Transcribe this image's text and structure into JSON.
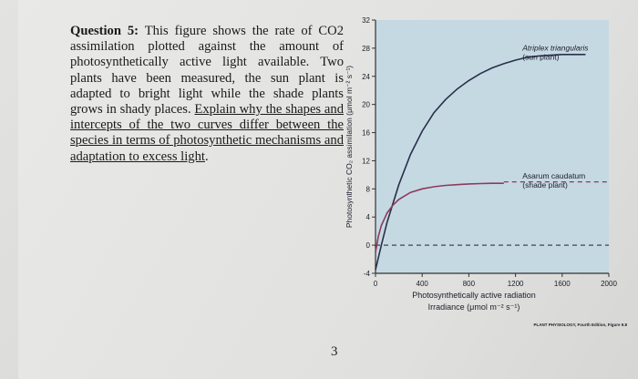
{
  "question": {
    "label": "Question 5:",
    "text": " This figure shows the rate of CO2 assimilation plotted against the amount of photosynthetically active light available. Two plants have been measured, the sun plant is adapted to bright light while the shade plants grows in shady places. ",
    "underlined_text": "Explain why the shapes and intercepts of the two curves differ between the species in terms of photosynthetic mechanisms and adaptation to excess light",
    "end_punct": "."
  },
  "page_number": "3",
  "chart_data": {
    "type": "line",
    "xlabel": "Photosynthetically active radiation",
    "xlabel2": "Irradiance (μmol m⁻² s⁻¹)",
    "ylabel": "Photosynthetic CO₂ assimilation (μmol m⁻² s⁻¹)",
    "xlim": [
      0,
      2000
    ],
    "ylim": [
      -4,
      32
    ],
    "x_ticks": [
      0,
      400,
      800,
      1200,
      1600,
      2000
    ],
    "y_ticks": [
      -4,
      0,
      4,
      8,
      12,
      16,
      20,
      24,
      28,
      32
    ],
    "plot_background": "#c5d9e3",
    "series": [
      {
        "name": "Atriplex triangularis (sun plant)",
        "color": "#2a2f4a",
        "x": [
          0,
          50,
          100,
          200,
          300,
          400,
          500,
          600,
          700,
          800,
          900,
          1000,
          1100,
          1200,
          1300,
          1400,
          1500,
          1600,
          1700,
          1800
        ],
        "y": [
          -3.5,
          0,
          3.3,
          8.6,
          12.9,
          16.2,
          18.8,
          20.7,
          22.2,
          23.4,
          24.4,
          25.2,
          25.8,
          26.3,
          26.7,
          26.9,
          27.0,
          27.1,
          27.1,
          27.1
        ]
      },
      {
        "name": "Asarum caudatum (shade plant)",
        "color": "#8e3a5c",
        "x": [
          0,
          25,
          50,
          100,
          150,
          200,
          300,
          400,
          500,
          600,
          700,
          800,
          900,
          1000,
          1100
        ],
        "y": [
          -1.0,
          1.3,
          2.8,
          4.6,
          5.7,
          6.5,
          7.5,
          8.0,
          8.3,
          8.5,
          8.6,
          8.7,
          8.75,
          8.8,
          8.8
        ]
      }
    ],
    "reference_lines": [
      {
        "kind": "dashed-horizontal",
        "y": 9,
        "x_from": 1100,
        "x_to": 2000,
        "color": "#8e3a5c"
      },
      {
        "kind": "dashed-horizontal",
        "y": 0,
        "x_from": 0,
        "x_to": 2000,
        "color": "#444444"
      }
    ],
    "annotations": [
      {
        "lines": [
          "Atriplex triangularis",
          "(sun plant)"
        ],
        "x": 1260,
        "y": 26.5
      },
      {
        "lines": [
          "Asarum caudatum",
          "(shade plant)"
        ],
        "x": 1260,
        "y": 8.3
      }
    ],
    "footer": "PLANT PHYSIOLOGY, Fourth Edition, Figure 9.8"
  }
}
